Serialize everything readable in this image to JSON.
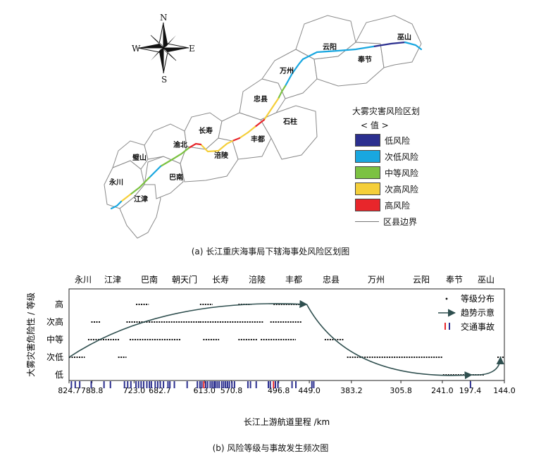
{
  "map": {
    "compass": {
      "n": "N",
      "s": "S",
      "e": "E",
      "w": "W"
    },
    "districts": [
      "巫山",
      "云阳",
      "奉节",
      "万州",
      "忠县",
      "石柱",
      "丰都",
      "长寿",
      "渝北",
      "涪陵",
      "璧山",
      "巴南",
      "永川",
      "江津"
    ],
    "legend": {
      "title": "大雾灾害风险区划",
      "subtitle": "< 值 >",
      "items": [
        {
          "label": "低风险",
          "color": "#2b2f8f"
        },
        {
          "label": "次低风险",
          "color": "#19a7e0"
        },
        {
          "label": "中等风险",
          "color": "#7cc242"
        },
        {
          "label": "次高风险",
          "color": "#f5cf3a"
        },
        {
          "label": "高风险",
          "color": "#e8262b"
        }
      ],
      "boundary_label": "区县边界",
      "boundary_color": "#8a8a8a"
    },
    "caption": "(a)  长江重庆海事局下辖海事处风险区划图"
  },
  "chart_data": {
    "type": "scatter",
    "title": "",
    "top_labels": [
      "永川",
      "江津",
      "巴南",
      "朝天门",
      "长寿",
      "涪陵",
      "丰都",
      "忠县",
      "万州",
      "云阳",
      "奉节",
      "巫山"
    ],
    "x_ticks": [
      824.7,
      788.8,
      723.0,
      682.7,
      613.0,
      570.8,
      496.8,
      449.0,
      383.2,
      305.8,
      241.0,
      197.4,
      144.0
    ],
    "xlabel": "长江上游航道里程 /km",
    "ylabel": "大雾灾害危险性 / 等级",
    "y_levels": [
      "低",
      "次低",
      "中等",
      "次高",
      "高"
    ],
    "xlim": [
      824.7,
      144.0
    ],
    "legend": {
      "items": [
        "等级分布",
        "趋势示意",
        "交通事故"
      ],
      "position": "top-right"
    },
    "level_segments": [
      {
        "level": "次低",
        "from": 824.7,
        "to": 800
      },
      {
        "level": "中等",
        "from": 795,
        "to": 745
      },
      {
        "level": "次低",
        "from": 748,
        "to": 735
      },
      {
        "level": "次高",
        "from": 790,
        "to": 775
      },
      {
        "level": "次高",
        "from": 735,
        "to": 700
      },
      {
        "level": "高",
        "from": 720,
        "to": 700
      },
      {
        "level": "中等",
        "from": 730,
        "to": 650
      },
      {
        "level": "次高",
        "from": 700,
        "to": 620
      },
      {
        "level": "次高",
        "from": 620,
        "to": 520
      },
      {
        "level": "高",
        "from": 620,
        "to": 600
      },
      {
        "level": "中等",
        "from": 615,
        "to": 590
      },
      {
        "level": "中等",
        "from": 560,
        "to": 530
      },
      {
        "level": "高",
        "from": 560,
        "to": 540
      },
      {
        "level": "中等",
        "from": 525,
        "to": 470
      },
      {
        "level": "次高",
        "from": 510,
        "to": 460
      },
      {
        "level": "高",
        "from": 505,
        "to": 455
      },
      {
        "level": "中等",
        "from": 425,
        "to": 395
      },
      {
        "level": "次低",
        "from": 390,
        "to": 240
      },
      {
        "level": "低",
        "from": 240,
        "to": 175
      },
      {
        "level": "次低",
        "from": 155,
        "to": 144
      }
    ],
    "trend": [
      {
        "from": [
          824.7,
          "次低"
        ],
        "to": [
          453,
          "高"
        ]
      },
      {
        "from": [
          453,
          "高"
        ],
        "to": [
          195,
          "低"
        ],
        "then": [
          150,
          "次低"
        ]
      }
    ],
    "accidents": [
      821,
      815,
      808,
      790,
      770,
      760,
      738,
      733,
      728,
      720,
      716,
      712,
      708,
      703,
      699,
      696,
      690,
      686,
      682,
      677,
      670,
      667,
      660,
      640,
      624,
      620,
      617,
      614,
      611,
      608,
      604,
      601,
      598,
      596,
      593,
      590,
      586,
      583,
      580,
      577,
      574,
      570,
      566,
      545,
      541,
      532,
      513,
      510,
      505,
      502,
      498,
      476,
      470,
      445,
      442,
      197
    ],
    "accident_colors": {
      "default": "#2b2f8f",
      "highlight": "#e8262b"
    },
    "highlight_accidents": [
      614,
      505
    ]
  },
  "chart_caption": "(b)  风险等级与事故发生频次图"
}
